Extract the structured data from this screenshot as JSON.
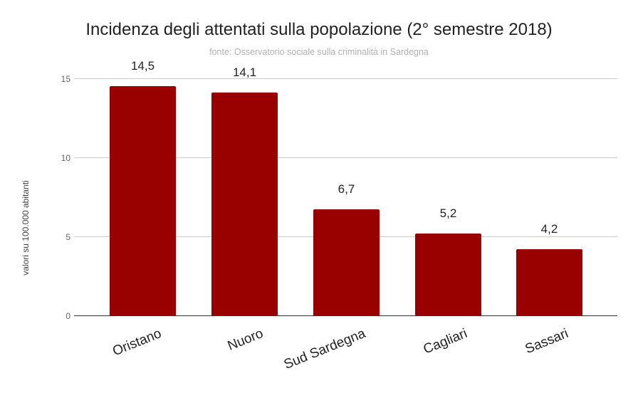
{
  "chart_data": {
    "type": "bar",
    "title": "Incidenza degli attentati sulla popolazione (2° semestre  2018)",
    "subtitle": "fonte: Osservatorio sociale sulla criminalità in Sardegna",
    "xlabel": "",
    "ylabel": "valori su 100.000 abitanti",
    "categories": [
      "Oristano",
      "Nuoro",
      "Sud Sardegna",
      "Cagliari",
      "Sassari"
    ],
    "values": [
      14.5,
      14.1,
      6.7,
      5.2,
      4.2
    ],
    "value_labels": [
      "14,5",
      "14,1",
      "6,7",
      "5,2",
      "4,2"
    ],
    "ylim": [
      0,
      15
    ],
    "yticks": [
      "0",
      "5",
      "10",
      "15"
    ],
    "grid": true,
    "legend": "none",
    "bar_color": "#990000"
  }
}
